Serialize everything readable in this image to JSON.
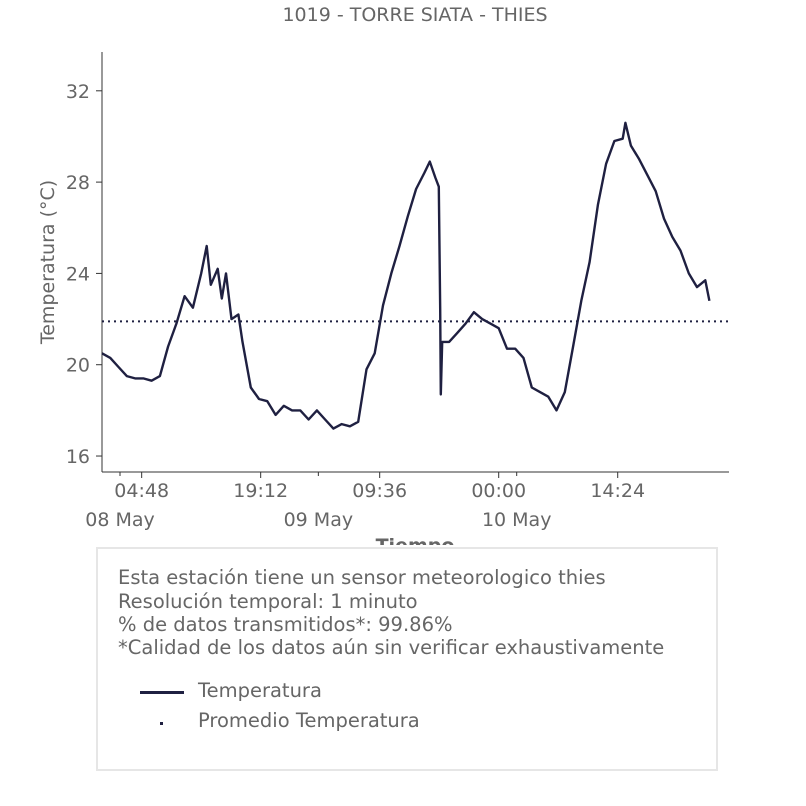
{
  "colors": {
    "series": "#1f2041",
    "text": "#666666",
    "axis": "#333333",
    "box_border": "#e6e6e6"
  },
  "chart_data": {
    "type": "line",
    "title": "1019 - TORRE SIATA - THIES",
    "xlabel": "Tiempo",
    "ylabel": "Temperatura (°C)",
    "xlim": [
      "2018-05-08T00:00",
      "2018-05-11T03:52"
    ],
    "ylim": [
      15.3,
      33.7
    ],
    "yticks": [
      16,
      20,
      24,
      28,
      32
    ],
    "xticks": [
      {
        "t": "2018-05-08T04:48",
        "label": "04:48"
      },
      {
        "t": "2018-05-08T19:12",
        "label": "19:12"
      },
      {
        "t": "2018-05-09T09:36",
        "label": "09:36"
      },
      {
        "t": "2018-05-10T00:00",
        "label": "00:00"
      },
      {
        "t": "2018-05-10T14:24",
        "label": "14:24"
      }
    ],
    "date_labels": [
      {
        "t": "2018-05-08T00:00",
        "label": "08 May"
      },
      {
        "t": "2018-05-09T00:00",
        "label": "09 May"
      },
      {
        "t": "2018-05-10T00:00",
        "label": "10 May"
      }
    ],
    "legend_position": "below",
    "grid": false,
    "series": [
      {
        "name": "Temperatura",
        "style": "solid",
        "points": [
          [
            "2018-05-08T00:00",
            20.5
          ],
          [
            "2018-05-08T01:00",
            20.3
          ],
          [
            "2018-05-08T02:00",
            19.9
          ],
          [
            "2018-05-08T03:00",
            19.5
          ],
          [
            "2018-05-08T04:00",
            19.4
          ],
          [
            "2018-05-08T05:00",
            19.4
          ],
          [
            "2018-05-08T06:00",
            19.3
          ],
          [
            "2018-05-08T07:00",
            19.5
          ],
          [
            "2018-05-08T08:00",
            20.8
          ],
          [
            "2018-05-08T09:00",
            21.8
          ],
          [
            "2018-05-08T10:00",
            23.0
          ],
          [
            "2018-05-08T11:00",
            22.5
          ],
          [
            "2018-05-08T12:00",
            24.0
          ],
          [
            "2018-05-08T12:40",
            25.2
          ],
          [
            "2018-05-08T13:10",
            23.5
          ],
          [
            "2018-05-08T14:00",
            24.2
          ],
          [
            "2018-05-08T14:30",
            22.9
          ],
          [
            "2018-05-08T15:00",
            24.0
          ],
          [
            "2018-05-08T15:40",
            22.0
          ],
          [
            "2018-05-08T16:30",
            22.2
          ],
          [
            "2018-05-08T17:00",
            21.0
          ],
          [
            "2018-05-08T18:00",
            19.0
          ],
          [
            "2018-05-08T19:00",
            18.5
          ],
          [
            "2018-05-08T20:00",
            18.4
          ],
          [
            "2018-05-08T21:00",
            17.8
          ],
          [
            "2018-05-08T22:00",
            18.2
          ],
          [
            "2018-05-08T23:00",
            18.0
          ],
          [
            "2018-05-09T00:00",
            18.0
          ],
          [
            "2018-05-09T01:00",
            17.6
          ],
          [
            "2018-05-09T02:00",
            18.0
          ],
          [
            "2018-05-09T03:00",
            17.6
          ],
          [
            "2018-05-09T04:00",
            17.2
          ],
          [
            "2018-05-09T05:00",
            17.4
          ],
          [
            "2018-05-09T06:00",
            17.3
          ],
          [
            "2018-05-09T07:00",
            17.5
          ],
          [
            "2018-05-09T08:00",
            19.8
          ],
          [
            "2018-05-09T09:00",
            20.5
          ],
          [
            "2018-05-09T10:00",
            22.6
          ],
          [
            "2018-05-09T11:00",
            24.0
          ],
          [
            "2018-05-09T12:00",
            25.2
          ],
          [
            "2018-05-09T13:00",
            26.5
          ],
          [
            "2018-05-09T14:00",
            27.7
          ],
          [
            "2018-05-09T15:00",
            28.4
          ],
          [
            "2018-05-09T15:40",
            28.9
          ],
          [
            "2018-05-09T16:20",
            28.2
          ],
          [
            "2018-05-09T16:45",
            27.8
          ],
          [
            "2018-05-09T16:55",
            22.4
          ],
          [
            "2018-05-09T17:00",
            18.7
          ],
          [
            "2018-05-09T17:10",
            21.0
          ],
          [
            "2018-05-09T18:00",
            21.0
          ],
          [
            "2018-05-09T19:00",
            21.4
          ],
          [
            "2018-05-09T20:00",
            21.8
          ],
          [
            "2018-05-09T21:00",
            22.3
          ],
          [
            "2018-05-09T22:00",
            22.0
          ],
          [
            "2018-05-09T23:00",
            21.8
          ],
          [
            "2018-05-10T00:00",
            21.6
          ],
          [
            "2018-05-10T01:00",
            20.7
          ],
          [
            "2018-05-10T02:00",
            20.7
          ],
          [
            "2018-05-10T03:00",
            20.3
          ],
          [
            "2018-05-10T04:00",
            19.0
          ],
          [
            "2018-05-10T05:00",
            18.8
          ],
          [
            "2018-05-10T06:00",
            18.6
          ],
          [
            "2018-05-10T07:00",
            18.0
          ],
          [
            "2018-05-10T08:00",
            18.8
          ],
          [
            "2018-05-10T09:00",
            20.8
          ],
          [
            "2018-05-10T10:00",
            22.8
          ],
          [
            "2018-05-10T11:00",
            24.5
          ],
          [
            "2018-05-10T12:00",
            27.0
          ],
          [
            "2018-05-10T13:00",
            28.8
          ],
          [
            "2018-05-10T14:00",
            29.8
          ],
          [
            "2018-05-10T15:00",
            29.9
          ],
          [
            "2018-05-10T15:20",
            30.6
          ],
          [
            "2018-05-10T16:00",
            29.6
          ],
          [
            "2018-05-10T17:00",
            29.0
          ],
          [
            "2018-05-10T18:00",
            28.3
          ],
          [
            "2018-05-10T19:00",
            27.6
          ],
          [
            "2018-05-10T20:00",
            26.4
          ],
          [
            "2018-05-10T21:00",
            25.6
          ],
          [
            "2018-05-10T22:00",
            25.0
          ],
          [
            "2018-05-10T23:00",
            24.0
          ],
          [
            "2018-05-11T00:00",
            23.4
          ],
          [
            "2018-05-11T01:00",
            23.7
          ],
          [
            "2018-05-11T01:30",
            22.8
          ]
        ]
      },
      {
        "name": "Promedio Temperatura",
        "style": "dotted",
        "value": 21.9
      }
    ]
  },
  "info": {
    "line1": "Esta estación tiene un sensor meteorologico thies",
    "line2": "Resolución temporal: 1 minuto",
    "line3": "% de datos transmitidos*: 99.86%",
    "line4": "*Calidad de los datos aún sin verificar exhaustivamente"
  }
}
